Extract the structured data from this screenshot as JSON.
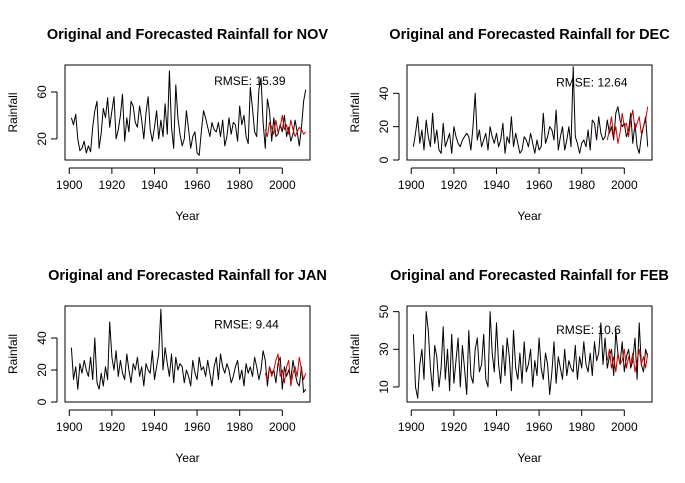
{
  "chart_data": [
    {
      "type": "line",
      "title": "Original and Forecasted Rainfall for NOV",
      "xlabel": "Year",
      "ylabel": "Rainfall",
      "xlim": [
        1898,
        2013
      ],
      "ylim": [
        2,
        83
      ],
      "xticks": [
        1900,
        1920,
        1940,
        1960,
        1980,
        2000
      ],
      "yticks": [
        20,
        60
      ],
      "grid": false,
      "annotation": "RMSE: 15.39",
      "annotation_pos": [
        1968,
        66
      ],
      "colors": {
        "original": "#000000",
        "forecast": "#cc0000"
      },
      "series": [
        {
          "name": "Original",
          "x_start": 1901,
          "values": [
            38,
            32,
            41,
            20,
            10,
            12,
            18,
            8,
            14,
            9,
            30,
            44,
            52,
            12,
            25,
            46,
            38,
            55,
            30,
            44,
            56,
            20,
            28,
            40,
            58,
            18,
            38,
            26,
            52,
            48,
            34,
            30,
            48,
            36,
            20,
            42,
            56,
            28,
            18,
            30,
            44,
            20,
            36,
            22,
            50,
            24,
            78,
            30,
            12,
            66,
            38,
            24,
            14,
            20,
            44,
            28,
            12,
            22,
            26,
            8,
            6,
            26,
            44,
            38,
            30,
            22,
            34,
            28,
            26,
            34,
            22,
            36,
            14,
            22,
            38,
            24,
            34,
            32,
            18,
            48,
            32,
            40,
            22,
            16,
            64,
            46,
            26,
            22,
            62,
            72,
            34,
            12,
            54,
            44,
            18,
            38,
            22,
            24,
            32,
            26,
            40,
            22,
            30,
            18,
            24,
            36,
            26,
            14,
            30,
            52,
            62
          ]
        },
        {
          "name": "Forecast",
          "x_start": 1992,
          "values": [
            28,
            22,
            34,
            30,
            24,
            36,
            26,
            30,
            40,
            28,
            32,
            24,
            36,
            28,
            22,
            26,
            30,
            28,
            24,
            26
          ]
        }
      ]
    },
    {
      "type": "line",
      "title": "Original and Forecasted Rainfall for DEC",
      "xlabel": "Year",
      "ylabel": "Rainfall",
      "xlim": [
        1898,
        2013
      ],
      "ylim": [
        0,
        57
      ],
      "xticks": [
        1900,
        1920,
        1940,
        1960,
        1980,
        2000
      ],
      "yticks": [
        0,
        20,
        40
      ],
      "grid": false,
      "annotation": "RMSE: 12.64",
      "annotation_pos": [
        1968,
        44
      ],
      "colors": {
        "original": "#000000",
        "forecast": "#cc0000"
      },
      "series": [
        {
          "name": "Original",
          "x_start": 1901,
          "values": [
            8,
            16,
            26,
            10,
            18,
            6,
            24,
            14,
            8,
            28,
            10,
            18,
            6,
            4,
            22,
            8,
            12,
            16,
            4,
            20,
            14,
            10,
            8,
            12,
            14,
            16,
            14,
            6,
            20,
            40,
            12,
            18,
            8,
            12,
            16,
            6,
            20,
            14,
            10,
            16,
            8,
            12,
            22,
            4,
            14,
            10,
            26,
            8,
            16,
            10,
            4,
            6,
            14,
            12,
            8,
            16,
            10,
            4,
            12,
            6,
            8,
            28,
            10,
            14,
            20,
            18,
            12,
            30,
            6,
            14,
            20,
            6,
            12,
            20,
            8,
            56,
            14,
            10,
            4,
            10,
            12,
            8,
            18,
            6,
            24,
            22,
            12,
            26,
            16,
            12,
            14,
            24,
            16,
            20,
            12,
            28,
            32,
            24,
            20,
            22,
            14,
            18,
            28,
            10,
            22,
            8,
            4,
            14,
            20,
            26,
            8
          ]
        },
        {
          "name": "Forecast",
          "x_start": 1992,
          "values": [
            12,
            18,
            26,
            14,
            20,
            10,
            16,
            28,
            20,
            22,
            14,
            24,
            30,
            18,
            22,
            26,
            16,
            20,
            24,
            32
          ]
        }
      ]
    },
    {
      "type": "line",
      "title": "Original and Forecasted Rainfall for JAN",
      "xlabel": "Year",
      "ylabel": "Rainfall",
      "xlim": [
        1898,
        2013
      ],
      "ylim": [
        0,
        60
      ],
      "xticks": [
        1900,
        1920,
        1940,
        1960,
        1980,
        2000
      ],
      "yticks": [
        0,
        20,
        40
      ],
      "grid": false,
      "annotation": "RMSE: 9.44",
      "annotation_pos": [
        1968,
        46
      ],
      "colors": {
        "original": "#000000",
        "forecast": "#cc0000"
      },
      "series": [
        {
          "name": "Original",
          "x_start": 1901,
          "values": [
            34,
            14,
            22,
            8,
            24,
            18,
            26,
            20,
            16,
            28,
            14,
            40,
            12,
            8,
            18,
            10,
            22,
            14,
            50,
            28,
            20,
            32,
            16,
            26,
            18,
            14,
            30,
            20,
            12,
            24,
            20,
            28,
            16,
            22,
            10,
            24,
            20,
            18,
            32,
            14,
            22,
            30,
            58,
            20,
            34,
            24,
            16,
            30,
            12,
            28,
            20,
            24,
            22,
            12,
            20,
            16,
            10,
            26,
            18,
            14,
            28,
            20,
            22,
            16,
            26,
            18,
            10,
            22,
            28,
            14,
            30,
            22,
            18,
            24,
            20,
            12,
            16,
            22,
            26,
            14,
            20,
            10,
            24,
            18,
            22,
            16,
            28,
            22,
            14,
            20,
            32,
            26,
            10,
            22,
            18,
            20,
            12,
            24,
            28,
            8,
            22,
            16,
            20,
            14,
            26,
            18,
            12,
            10,
            22,
            6,
            8
          ]
        },
        {
          "name": "Forecast",
          "x_start": 1992,
          "values": [
            18,
            14,
            22,
            16,
            20,
            26,
            30,
            16,
            20,
            12,
            22,
            26,
            10,
            18,
            22,
            16,
            28,
            20,
            14,
            18
          ]
        }
      ]
    },
    {
      "type": "line",
      "title": "Original and Forecasted Rainfall for FEB",
      "xlabel": "Year",
      "ylabel": "Rainfall",
      "xlim": [
        1898,
        2013
      ],
      "ylim": [
        2,
        53
      ],
      "xticks": [
        1900,
        1920,
        1940,
        1960,
        1980,
        2000
      ],
      "yticks": [
        10,
        30,
        50
      ],
      "grid": false,
      "annotation": "RMSE: 10.6",
      "annotation_pos": [
        1968,
        38
      ],
      "colors": {
        "original": "#000000",
        "forecast": "#cc0000"
      },
      "series": [
        {
          "name": "Original",
          "x_start": 1901,
          "values": [
            38,
            10,
            4,
            22,
            30,
            14,
            50,
            40,
            20,
            8,
            32,
            26,
            10,
            20,
            42,
            14,
            30,
            8,
            38,
            12,
            24,
            36,
            10,
            32,
            20,
            6,
            40,
            16,
            12,
            30,
            36,
            18,
            22,
            38,
            14,
            10,
            50,
            28,
            18,
            44,
            22,
            12,
            32,
            16,
            36,
            26,
            8,
            40,
            20,
            14,
            28,
            12,
            34,
            18,
            22,
            30,
            10,
            24,
            16,
            36,
            20,
            14,
            28,
            22,
            6,
            18,
            34,
            12,
            26,
            20,
            14,
            30,
            16,
            24,
            20,
            18,
            32,
            14,
            26,
            20,
            34,
            22,
            18,
            28,
            16,
            34,
            24,
            28,
            44,
            22,
            36,
            20,
            26,
            30,
            16,
            40,
            28,
            22,
            34,
            18,
            26,
            30,
            20,
            24,
            36,
            14,
            44,
            22,
            18,
            30,
            26
          ]
        },
        {
          "name": "Forecast",
          "x_start": 1992,
          "values": [
            24,
            30,
            20,
            26,
            18,
            28,
            22,
            24,
            30,
            20,
            26,
            22,
            28,
            18,
            24,
            30,
            22,
            26,
            20,
            28
          ]
        }
      ]
    }
  ]
}
